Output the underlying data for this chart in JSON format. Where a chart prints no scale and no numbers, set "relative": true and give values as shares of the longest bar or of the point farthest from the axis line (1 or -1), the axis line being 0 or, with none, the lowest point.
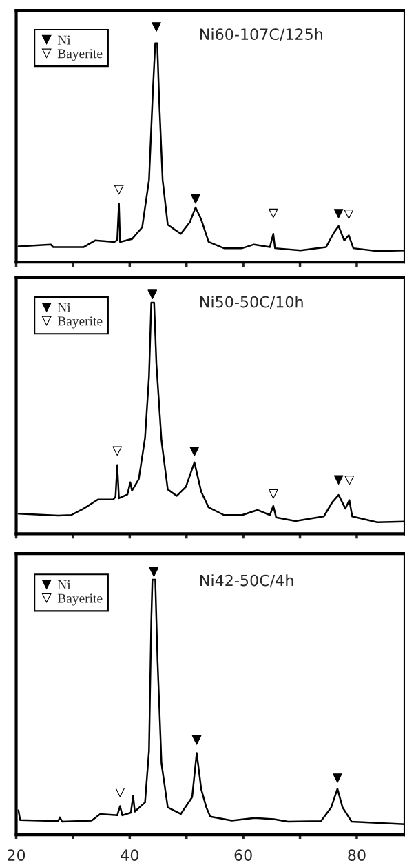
{
  "chart_data": [
    {
      "type": "line",
      "relative": true,
      "xlim": [
        20,
        88.5
      ],
      "xticks": [
        {
          "value": 20,
          "label": null
        },
        {
          "value": 30,
          "label": null
        },
        {
          "value": 40,
          "label": null
        },
        {
          "value": 50,
          "label": null
        },
        {
          "value": 60,
          "label": null
        },
        {
          "value": 70,
          "label": null
        },
        {
          "value": 80,
          "label": null
        }
      ],
      "tick_labels": false,
      "legend": "top left",
      "grid": false,
      "annotations": [
        "Ni60-107C/125h"
      ],
      "series": [
        {
          "color": "#000000",
          "x": [
            20.4,
            26.1,
            26.5,
            31.9,
            33.9,
            37.3,
            37.8,
            38.1,
            38.3,
            40.4,
            42.2,
            43.4,
            44.1,
            44.5,
            44.85,
            45.2,
            45.8,
            46.7,
            49.0,
            50.6,
            51.6,
            52.6,
            53.9,
            56.6,
            59.8,
            61.9,
            64.7,
            65.3,
            65.6,
            70.1,
            74.6,
            76.0,
            76.8,
            77.8,
            78.6,
            79.4,
            83.6,
            88.5
          ],
          "values": [
            0.067,
            0.075,
            0.064,
            0.064,
            0.092,
            0.086,
            0.093,
            0.248,
            0.086,
            0.098,
            0.148,
            0.349,
            0.738,
            0.93,
            0.93,
            0.683,
            0.349,
            0.159,
            0.12,
            0.17,
            0.232,
            0.181,
            0.086,
            0.059,
            0.059,
            0.075,
            0.064,
            0.12,
            0.059,
            0.05,
            0.064,
            0.126,
            0.153,
            0.092,
            0.114,
            0.059,
            0.047,
            0.05
          ]
        },
        {
          "type": "scatter",
          "name": "Ni",
          "marker": "triangle",
          "color": "#000000",
          "x": [
            44.7,
            51.6,
            76.8
          ],
          "values": [
            1.0,
            0.268,
            0.206
          ]
        },
        {
          "type": "scatter",
          "name": "Bayerite",
          "marker": "triangle",
          "color": "#ffffff",
          "x": [
            38.1,
            65.3,
            78.6
          ],
          "values": [
            0.307,
            0.207,
            0.203
          ]
        }
      ]
    },
    {
      "type": "line",
      "relative": true,
      "xlim": [
        20,
        88.5
      ],
      "xticks": [
        {
          "value": 20,
          "label": null
        },
        {
          "value": 30,
          "label": null
        },
        {
          "value": 40,
          "label": null
        },
        {
          "value": 50,
          "label": null
        },
        {
          "value": 60,
          "label": null
        },
        {
          "value": 70,
          "label": null
        },
        {
          "value": 80,
          "label": null
        }
      ],
      "tick_labels": false,
      "legend": "top left",
      "grid": false,
      "annotations": [
        "Ni50-50C/10h"
      ],
      "series": [
        {
          "color": "#000000",
          "x": [
            20.4,
            27.4,
            29.7,
            31.9,
            34.4,
            37.1,
            37.5,
            37.8,
            38.1,
            39.6,
            40.1,
            40.4,
            41.6,
            42.7,
            43.4,
            43.8,
            44.3,
            44.7,
            45.6,
            46.7,
            48.3,
            49.9,
            51.4,
            52.6,
            53.9,
            56.6,
            59.8,
            62.5,
            64.7,
            65.3,
            65.8,
            69.2,
            74.2,
            75.7,
            76.8,
            78.0,
            78.7,
            79.2,
            83.6,
            88.5
          ],
          "values": [
            0.084,
            0.076,
            0.078,
            0.105,
            0.143,
            0.143,
            0.154,
            0.287,
            0.148,
            0.164,
            0.215,
            0.18,
            0.228,
            0.4,
            0.657,
            0.966,
            0.966,
            0.711,
            0.389,
            0.185,
            0.158,
            0.196,
            0.298,
            0.175,
            0.11,
            0.078,
            0.078,
            0.099,
            0.078,
            0.116,
            0.068,
            0.053,
            0.072,
            0.132,
            0.162,
            0.105,
            0.14,
            0.072,
            0.048,
            0.051
          ]
        },
        {
          "type": "scatter",
          "name": "Ni",
          "marker": "triangle",
          "color": "#000000",
          "x": [
            44.0,
            51.4,
            76.8
          ],
          "values": [
            1.0,
            0.344,
            0.225
          ]
        },
        {
          "type": "scatter",
          "name": "Bayerite",
          "marker": "triangle",
          "color": "#ffffff",
          "x": [
            37.8,
            65.3,
            78.7
          ],
          "values": [
            0.346,
            0.166,
            0.223
          ]
        }
      ]
    },
    {
      "type": "line",
      "relative": true,
      "xlim": [
        20,
        88.5
      ],
      "xticks": [
        20,
        {
          "value": 30,
          "label": null
        },
        40,
        {
          "value": 50,
          "label": null
        },
        60,
        {
          "value": 70,
          "label": null
        },
        80
      ],
      "tick_labels": "x",
      "legend": "top left",
      "grid": false,
      "annotations": [
        "Ni42-50C/4h"
      ],
      "series": [
        {
          "color": "#000000",
          "x": [
            20.4,
            20.7,
            27.4,
            27.7,
            28.1,
            33.3,
            34.8,
            37.8,
            38.3,
            38.7,
            40.2,
            40.6,
            40.9,
            42.7,
            43.4,
            43.8,
            44.0,
            44.5,
            44.9,
            45.6,
            46.7,
            49.0,
            51.0,
            51.8,
            52.6,
            53.5,
            54.2,
            58.0,
            62.0,
            65.4,
            67.9,
            73.7,
            75.5,
            76.6,
            77.5,
            79.1,
            88.5
          ],
          "values": [
            0.093,
            0.056,
            0.052,
            0.066,
            0.05,
            0.054,
            0.079,
            0.074,
            0.109,
            0.074,
            0.084,
            0.148,
            0.088,
            0.123,
            0.32,
            0.814,
            0.971,
            0.971,
            0.665,
            0.271,
            0.104,
            0.079,
            0.143,
            0.311,
            0.173,
            0.104,
            0.069,
            0.054,
            0.064,
            0.059,
            0.05,
            0.052,
            0.104,
            0.175,
            0.104,
            0.05,
            0.04
          ]
        },
        {
          "type": "scatter",
          "name": "Ni",
          "marker": "triangle",
          "color": "#000000",
          "x": [
            44.25,
            51.8,
            76.6
          ],
          "values": [
            1.0,
            0.36,
            0.215
          ]
        },
        {
          "type": "scatter",
          "name": "Bayerite",
          "marker": "triangle",
          "color": "#ffffff",
          "x": [
            38.3
          ],
          "values": [
            0.161
          ]
        }
      ]
    }
  ]
}
